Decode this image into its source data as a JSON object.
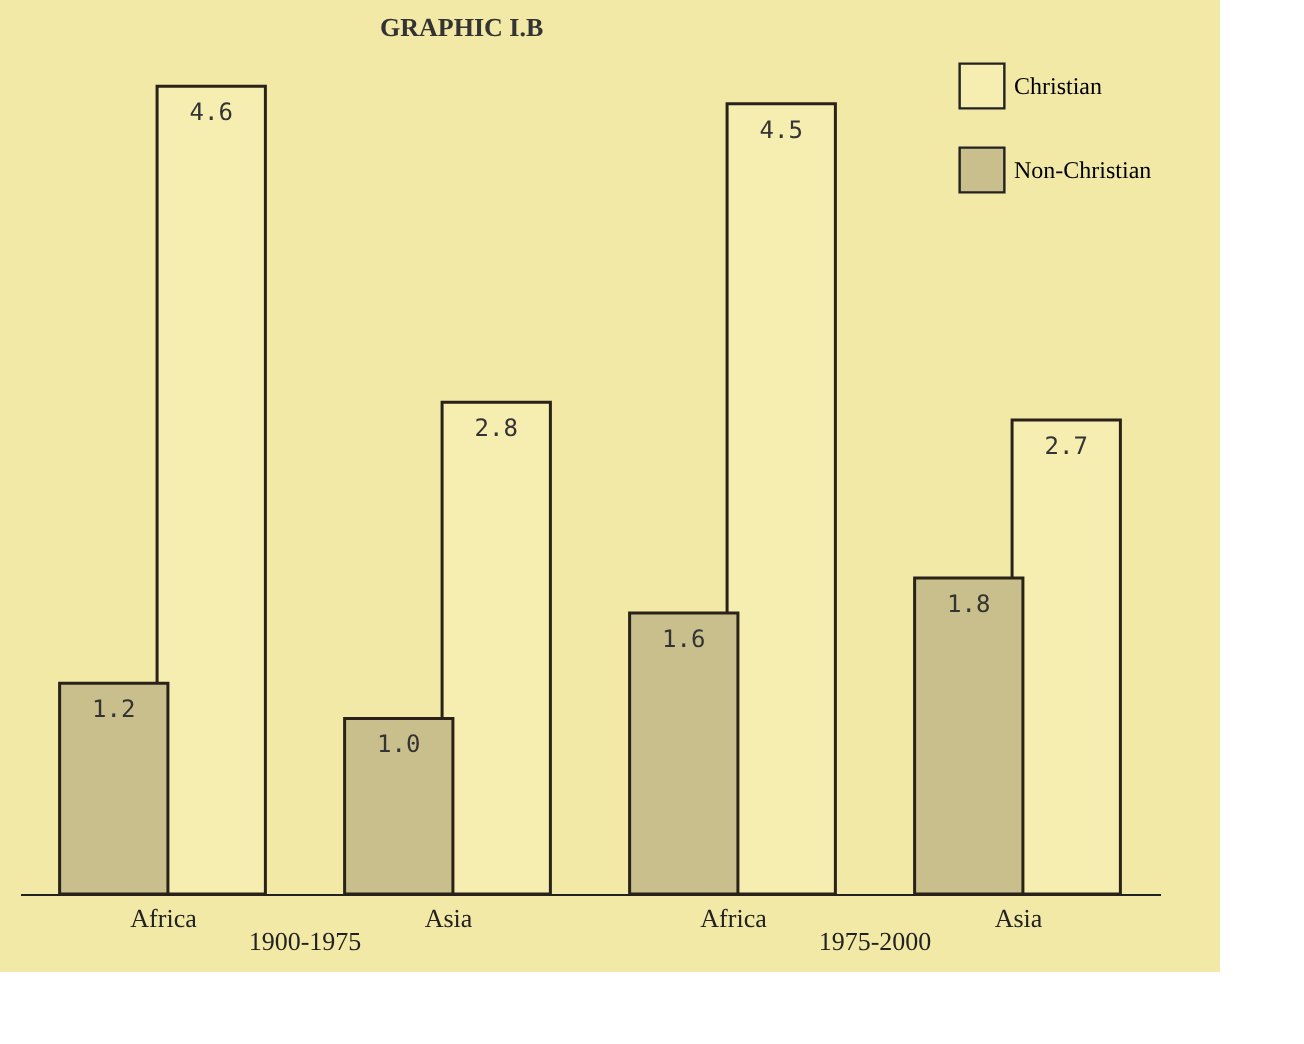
{
  "chart_data": {
    "type": "bar",
    "title": "GRAPHIC I.B",
    "categories": [
      "Africa",
      "Asia",
      "Africa",
      "Asia"
    ],
    "series": [
      {
        "name": "Christian",
        "color": "#f6eeb0",
        "values": [
          4.6,
          2.8,
          4.5,
          2.7
        ],
        "value_labels": [
          "4.6",
          "2.8",
          "4.5",
          "2.7"
        ]
      },
      {
        "name": "Non-Christian",
        "color": "#c8bf8c",
        "values": [
          1.2,
          1.0,
          1.6,
          1.8
        ],
        "value_labels": [
          "1.2",
          "1.0",
          "1.6",
          "1.8"
        ]
      }
    ],
    "legend": "top right",
    "grid": false,
    "annotations": [
      "1900-1975",
      "1975-2000"
    ]
  }
}
